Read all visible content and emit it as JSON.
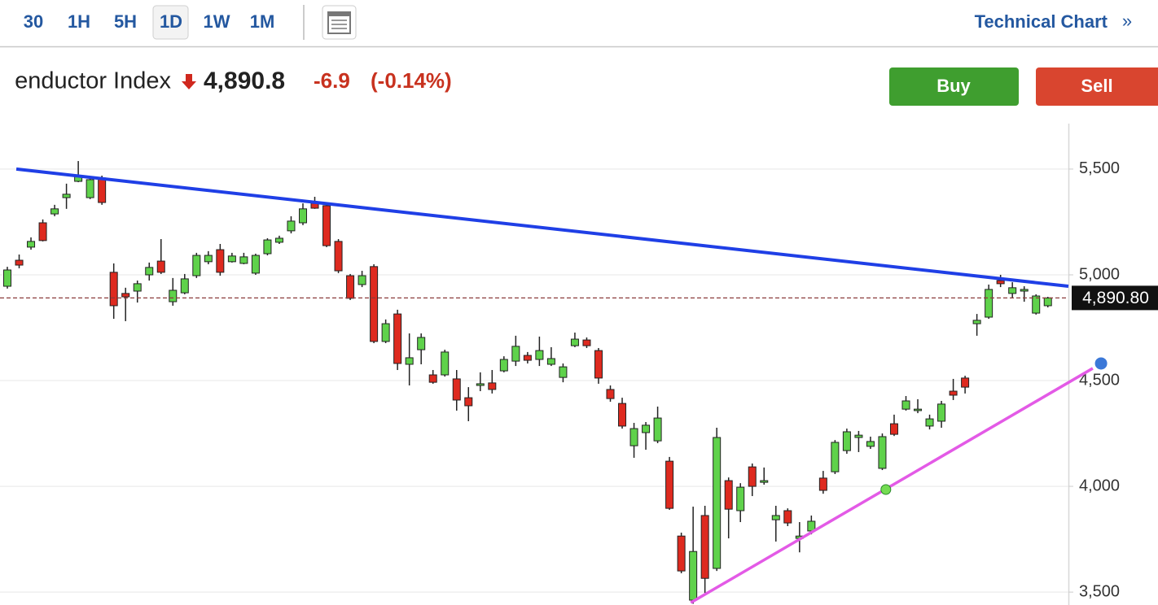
{
  "header": {
    "tabs": [
      "30",
      "1H",
      "5H",
      "1D",
      "1W",
      "1M"
    ],
    "selected_tab": "1D",
    "link": "Technical Chart",
    "link_icon": "»",
    "instrument": "enductor Index",
    "price": "4,890.8",
    "change": "-6.9",
    "change_pct": "(-0.14%)"
  },
  "buttons": [
    "Buy",
    "Sell"
  ],
  "chart_data": {
    "type": "candlestick",
    "up_color": "#5fd24b",
    "down_color": "#de2a1f",
    "open": [
      4946,
      5069,
      5131,
      5246,
      5288,
      5365,
      5442,
      5365,
      5458,
      5012,
      4912,
      4923,
      5000,
      5065,
      4873,
      4915,
      4996,
      5062,
      5119,
      5062,
      5054,
      5008,
      5100,
      5154,
      5208,
      5246,
      5338,
      5327,
      5158,
      4996,
      4954,
      5039,
      4685,
      4815,
      4577,
      4646,
      4527,
      4527,
      4508,
      4419,
      4477,
      4489,
      4546,
      4592,
      4619,
      4600,
      4577,
      4515,
      4665,
      4692,
      4642,
      4458,
      4392,
      4192,
      4254,
      4215,
      4119,
      3765,
      3462,
      3862,
      3612,
      4027,
      3885,
      4092,
      4019,
      3842,
      3885,
      3754,
      3789,
      4039,
      4069,
      4169,
      4231,
      4189,
      4085,
      4296,
      4365,
      4358,
      4285,
      4308,
      4450,
      4512,
      4769,
      4800,
      4973,
      4912,
      4923,
      4819,
      4854
    ],
    "high": [
      5038,
      5096,
      5177,
      5262,
      5331,
      5431,
      5538,
      5462,
      5469,
      5054,
      4939,
      4973,
      5058,
      5169,
      4985,
      5004,
      5104,
      5112,
      5146,
      5104,
      5104,
      5100,
      5173,
      5185,
      5277,
      5338,
      5369,
      5335,
      5169,
      5004,
      5019,
      5050,
      4789,
      4835,
      4723,
      4723,
      4550,
      4646,
      4550,
      4469,
      4539,
      4550,
      4615,
      4712,
      4635,
      4708,
      4658,
      4581,
      4727,
      4704,
      4654,
      4477,
      4419,
      4300,
      4304,
      4377,
      4139,
      3781,
      3904,
      3908,
      4277,
      4042,
      4015,
      4108,
      4089,
      3908,
      3896,
      3831,
      3862,
      4073,
      4219,
      4273,
      4262,
      4235,
      4250,
      4339,
      4427,
      4412,
      4339,
      4404,
      4508,
      4523,
      4815,
      4954,
      5000,
      4965,
      4946,
      4908,
      4896
    ],
    "low": [
      4935,
      5031,
      5119,
      5158,
      5277,
      5312,
      5438,
      5358,
      5331,
      4792,
      4781,
      4869,
      4973,
      5004,
      4854,
      4908,
      4985,
      5050,
      4996,
      5058,
      5050,
      5000,
      5092,
      5146,
      5196,
      5235,
      5312,
      5131,
      5008,
      4881,
      4942,
      4677,
      4677,
      4550,
      4477,
      4577,
      4485,
      4519,
      4358,
      4308,
      4450,
      4439,
      4539,
      4569,
      4581,
      4569,
      4569,
      4492,
      4658,
      4654,
      4485,
      4400,
      4273,
      4135,
      4173,
      4204,
      3889,
      3589,
      3445,
      3496,
      3600,
      3754,
      3831,
      3954,
      4008,
      3739,
      3812,
      3688,
      3773,
      3965,
      4058,
      4154,
      4162,
      4177,
      4077,
      4238,
      4358,
      4346,
      4269,
      4277,
      4408,
      4439,
      4712,
      4792,
      4942,
      4889,
      4873,
      4812,
      4846
    ],
    "close": [
      5023,
      5046,
      5158,
      5162,
      5312,
      5381,
      5469,
      5450,
      5342,
      4854,
      4896,
      4958,
      5035,
      5012,
      4927,
      4981,
      5092,
      5092,
      5012,
      5089,
      5085,
      5092,
      5165,
      5173,
      5254,
      5312,
      5315,
      5138,
      5019,
      4889,
      4996,
      4685,
      4769,
      4581,
      4608,
      4704,
      4492,
      4635,
      4408,
      4381,
      4485,
      4458,
      4600,
      4662,
      4596,
      4642,
      4604,
      4565,
      4696,
      4665,
      4512,
      4415,
      4285,
      4273,
      4289,
      4323,
      3896,
      3600,
      3692,
      3565,
      4231,
      3892,
      3996,
      4000,
      4027,
      3862,
      3827,
      3765,
      3835,
      3981,
      4208,
      4258,
      4242,
      4212,
      4235,
      4246,
      4404,
      4365,
      4319,
      4389,
      4431,
      4469,
      4785,
      4931,
      4958,
      4939,
      4931,
      4900,
      4890.8
    ],
    "xlim": [
      -0.62,
      89.74
    ],
    "ylim": [
      3439,
      5715
    ],
    "yticks": [
      {
        "value": 3500,
        "label": "3,500"
      },
      {
        "value": 4000,
        "label": "4,000"
      },
      {
        "value": 4500,
        "label": "4,500"
      },
      {
        "value": 5000,
        "label": "5,000"
      },
      {
        "value": 5500,
        "label": "5,500"
      }
    ],
    "grid": true,
    "last": {
      "value": 4890.8,
      "label": "4,890.80"
    },
    "lines": [
      {
        "color": "#1f3fe6",
        "x": [
          0.76,
          89.74
        ],
        "values": [
          5500,
          4946
        ]
      },
      {
        "color": "#e35ae6",
        "x": [
          57.8,
          91.8
        ],
        "values": [
          3450,
          4558
        ]
      }
    ],
    "markers": [
      {
        "color": "#74dc52",
        "x": 74.3,
        "value": 3985
      },
      {
        "color": "#3b78d8",
        "x": 92.5,
        "value": 4581
      }
    ]
  }
}
